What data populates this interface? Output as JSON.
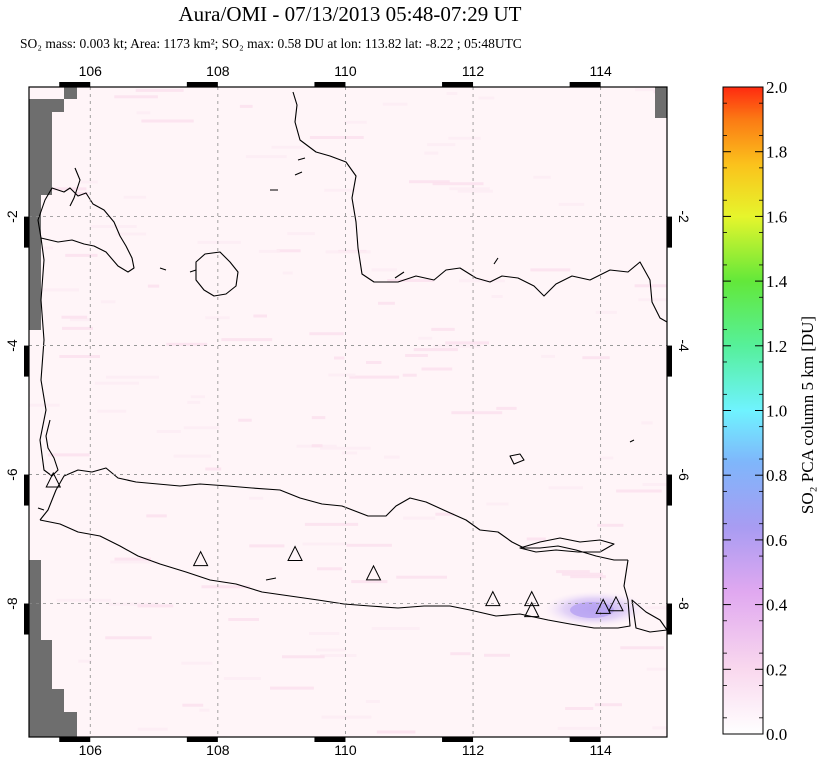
{
  "chart_data": {
    "type": "heatmap",
    "title": "Aura/OMI - 07/13/2013 05:48-07:29 UT",
    "subtitle": "SO₂ mass: 0.003 kt; Area: 1173 km²; SO₂ max: 0.58 DU at lon: 113.82 lat: -8.22 ; 05:48UTC",
    "x_ticks": [
      "106",
      "108",
      "110",
      "112",
      "114"
    ],
    "x_tick_values": [
      106,
      108,
      110,
      112,
      114
    ],
    "y_ticks": [
      "-2",
      "-4",
      "-6",
      "-8"
    ],
    "y_tick_values": [
      -2,
      -4,
      -6,
      -8
    ],
    "xlim": [
      105.0,
      115.0
    ],
    "ylim": [
      -10.0,
      0.0
    ],
    "grid": true,
    "colorbar": {
      "label": "SO₂ PCA column 5 km [DU]",
      "ticks": [
        "2.0",
        "1.8",
        "1.6",
        "1.4",
        "1.2",
        "1.0",
        "0.8",
        "0.6",
        "0.4",
        "0.2",
        "0.0"
      ],
      "range": [
        0.0,
        2.0
      ]
    },
    "volcanoes": [
      {
        "lon": 105.42,
        "lat": -6.1
      },
      {
        "lon": 107.73,
        "lat": -7.32
      },
      {
        "lon": 109.21,
        "lat": -7.24
      },
      {
        "lon": 110.44,
        "lat": -7.54
      },
      {
        "lon": 112.31,
        "lat": -7.94
      },
      {
        "lon": 112.92,
        "lat": -7.94
      },
      {
        "lon": 112.92,
        "lat": -8.11
      },
      {
        "lon": 114.04,
        "lat": -8.06
      },
      {
        "lon": 114.24,
        "lat": -8.02
      }
    ],
    "so2_max": {
      "value": 0.58,
      "lon": 113.82,
      "lat": -8.22
    }
  },
  "colors": {
    "background_field": "#fff5f8",
    "no_data": "#6e6e6e",
    "coast": "#000000",
    "grid": "#8a8a8a",
    "plume": "#c9b8f0"
  }
}
